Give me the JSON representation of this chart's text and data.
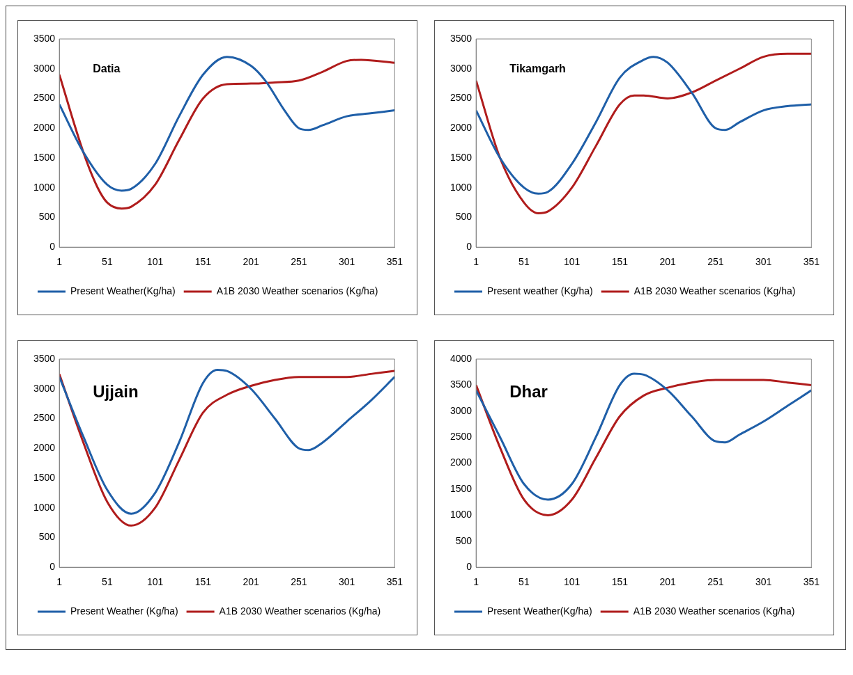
{
  "chart_data": [
    {
      "type": "line",
      "title": "Datia",
      "xlim": [
        1,
        351
      ],
      "xticks": [
        1,
        51,
        101,
        151,
        201,
        251,
        301,
        351
      ],
      "ylim": [
        0,
        3500
      ],
      "yticks": [
        0,
        500,
        1000,
        1500,
        2000,
        2500,
        3000,
        3500
      ],
      "grid": false,
      "legend": "bottom",
      "series": [
        {
          "name": "Present Weather(Kg/ha)",
          "color": "#1f5fa8",
          "x": [
            1,
            26,
            51,
            66,
            76,
            101,
            126,
            151,
            176,
            201,
            216,
            236,
            251,
            261,
            276,
            301,
            326,
            351
          ],
          "values": [
            2400,
            1600,
            1050,
            950,
            980,
            1400,
            2200,
            2900,
            3200,
            3050,
            2800,
            2300,
            2000,
            1970,
            2050,
            2200,
            2250,
            2300
          ]
        },
        {
          "name": "A1B 2030 Weather scenarios (Kg/ha)",
          "color": "#b01c1c",
          "x": [
            1,
            26,
            41,
            51,
            66,
            76,
            101,
            126,
            151,
            176,
            201,
            226,
            251,
            276,
            301,
            316,
            351
          ],
          "values": [
            2900,
            1600,
            1000,
            750,
            650,
            680,
            1050,
            1800,
            2500,
            2740,
            2750,
            2770,
            2800,
            2950,
            3130,
            3150,
            3100
          ]
        }
      ]
    },
    {
      "type": "line",
      "title": "Tikamgarh",
      "xlim": [
        1,
        351
      ],
      "xticks": [
        1,
        51,
        101,
        151,
        201,
        251,
        301,
        351
      ],
      "ylim": [
        0,
        3500
      ],
      "yticks": [
        0,
        500,
        1000,
        1500,
        2000,
        2500,
        3000,
        3500
      ],
      "grid": false,
      "legend": "bottom",
      "series": [
        {
          "name": "Present weather (Kg/ha)",
          "color": "#1f5fa8",
          "x": [
            1,
            26,
            51,
            66,
            76,
            101,
            126,
            151,
            176,
            186,
            201,
            226,
            251,
            261,
            276,
            301,
            326,
            351
          ],
          "values": [
            2300,
            1500,
            1000,
            900,
            930,
            1400,
            2100,
            2850,
            3150,
            3200,
            3100,
            2600,
            2000,
            1970,
            2100,
            2300,
            2370,
            2400
          ]
        },
        {
          "name": "A1B 2030 Weather scenarios (Kg/ha)",
          "color": "#b01c1c",
          "x": [
            1,
            26,
            51,
            66,
            76,
            101,
            126,
            151,
            166,
            176,
            201,
            226,
            251,
            276,
            301,
            326,
            351
          ],
          "values": [
            2800,
            1500,
            750,
            570,
            600,
            1000,
            1700,
            2400,
            2550,
            2550,
            2500,
            2600,
            2800,
            3000,
            3200,
            3250,
            3250
          ]
        }
      ]
    },
    {
      "type": "line",
      "title": "Ujjain",
      "xlim": [
        1,
        351
      ],
      "xticks": [
        1,
        51,
        101,
        151,
        201,
        251,
        301,
        351
      ],
      "ylim": [
        0,
        3500
      ],
      "yticks": [
        0,
        500,
        1000,
        1500,
        2000,
        2500,
        3000,
        3500
      ],
      "grid": false,
      "legend": "bottom",
      "series": [
        {
          "name": "Present Weather (Kg/ha)",
          "color": "#1f5fa8",
          "x": [
            1,
            26,
            51,
            76,
            101,
            126,
            151,
            166,
            176,
            201,
            226,
            251,
            261,
            276,
            301,
            326,
            351
          ],
          "values": [
            3200,
            2200,
            1300,
            900,
            1250,
            2100,
            3100,
            3320,
            3300,
            3000,
            2500,
            2000,
            1970,
            2100,
            2450,
            2800,
            3200
          ]
        },
        {
          "name": "A1B 2030 Weather scenarios (Kg/ha)",
          "color": "#b01c1c",
          "x": [
            1,
            26,
            51,
            76,
            101,
            126,
            151,
            176,
            201,
            226,
            251,
            276,
            301,
            326,
            351
          ],
          "values": [
            3250,
            2100,
            1100,
            700,
            1000,
            1800,
            2600,
            2900,
            3050,
            3150,
            3200,
            3200,
            3200,
            3250,
            3300
          ]
        }
      ]
    },
    {
      "type": "line",
      "title": "Dhar",
      "xlim": [
        1,
        351
      ],
      "xticks": [
        1,
        51,
        101,
        151,
        201,
        251,
        301,
        351
      ],
      "ylim": [
        0,
        4000
      ],
      "yticks": [
        0,
        500,
        1000,
        1500,
        2000,
        2500,
        3000,
        3500,
        4000
      ],
      "grid": false,
      "legend": "bottom",
      "series": [
        {
          "name": "Present Weather(Kg/ha)",
          "color": "#1f5fa8",
          "x": [
            1,
            26,
            51,
            76,
            101,
            126,
            151,
            166,
            176,
            201,
            226,
            251,
            261,
            276,
            301,
            326,
            351
          ],
          "values": [
            3400,
            2500,
            1600,
            1300,
            1600,
            2500,
            3500,
            3720,
            3700,
            3400,
            2900,
            2420,
            2400,
            2550,
            2800,
            3100,
            3400
          ]
        },
        {
          "name": "A1B 2030 Weather scenarios (Kg/ha)",
          "color": "#b01c1c",
          "x": [
            1,
            26,
            51,
            76,
            101,
            126,
            151,
            176,
            201,
            226,
            251,
            276,
            301,
            326,
            351
          ],
          "values": [
            3500,
            2300,
            1300,
            1000,
            1300,
            2100,
            2900,
            3300,
            3450,
            3550,
            3600,
            3600,
            3600,
            3550,
            3500
          ]
        }
      ]
    }
  ]
}
